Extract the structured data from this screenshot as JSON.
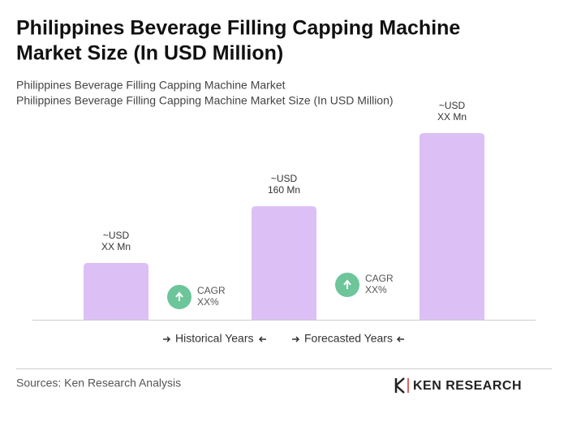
{
  "chart_data": {
    "type": "bar",
    "title": [
      "Philippines Beverage Filling Capping Machine",
      "Market Size (In USD Million)"
    ],
    "subtitle": [
      "Philippines Beverage Filling Capping Machine Market",
      "Philippines Beverage Filling Capping Machine Market Size (In USD Million)"
    ],
    "categories": [
      null,
      null,
      null
    ],
    "values": [
      80,
      160,
      263
    ],
    "value_labels": [
      [
        "~USD",
        "XX Mn"
      ],
      [
        "~USD",
        "160 Mn"
      ],
      [
        "~USD",
        "XX Mn"
      ]
    ],
    "color": "#dcc0f5",
    "cagr": [
      [
        "CAGR",
        "XX%"
      ],
      [
        "CAGR",
        "XX%"
      ]
    ],
    "cagr_color": "#6dc59a",
    "legend": [
      "Historical Years",
      "Forecasted Years"
    ],
    "source": "Sources: Ken Research Analysis",
    "logo": "KEN RESEARCH"
  }
}
